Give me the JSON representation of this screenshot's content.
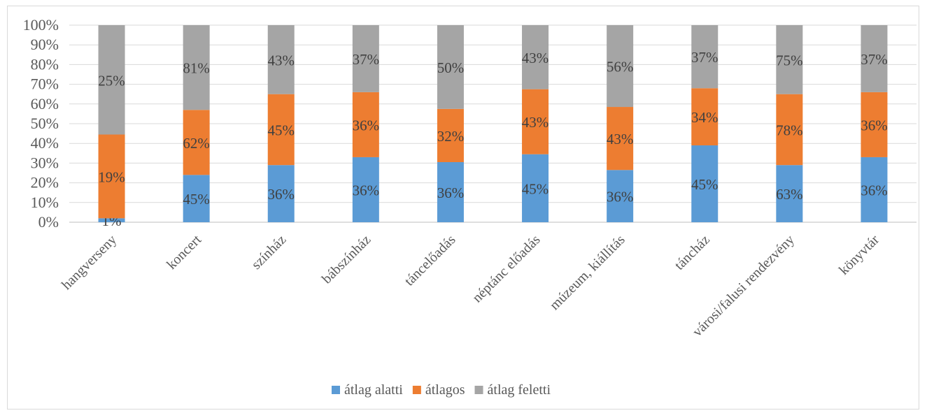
{
  "chart_data": {
    "type": "bar",
    "stacked": true,
    "percent_scale": true,
    "categories": [
      "hangverseny",
      "koncert",
      "színház",
      "bábszínház",
      "táncelőadás",
      "néptánc előadás",
      "múzeum, kiállítás",
      "táncház",
      "városi/falusi rendezvény",
      "könyvtár"
    ],
    "series": [
      {
        "name": "átlag alatti",
        "color": "#5b9bd5",
        "values": [
          2,
          24,
          29,
          33,
          30.5,
          34.5,
          26.5,
          39,
          29,
          33
        ],
        "labels": [
          "1%",
          "45%",
          "36%",
          "36%",
          "36%",
          "45%",
          "36%",
          "45%",
          "63%",
          "36%"
        ]
      },
      {
        "name": "átlagos",
        "color": "#ed7d31",
        "values": [
          42.5,
          33,
          36,
          33,
          27,
          33,
          32,
          29,
          36,
          33
        ],
        "labels": [
          "19%",
          "62%",
          "45%",
          "36%",
          "32%",
          "43%",
          "43%",
          "34%",
          "78%",
          "36%"
        ]
      },
      {
        "name": "átlag feletti",
        "color": "#a5a5a5",
        "values": [
          55.5,
          43,
          35,
          34,
          42.5,
          32.5,
          41.5,
          32,
          35,
          34
        ],
        "labels": [
          "25%",
          "81%",
          "43%",
          "37%",
          "50%",
          "43%",
          "56%",
          "37%",
          "75%",
          "37%"
        ]
      }
    ],
    "yticks": [
      "0%",
      "10%",
      "20%",
      "30%",
      "40%",
      "50%",
      "60%",
      "70%",
      "80%",
      "90%",
      "100%"
    ],
    "ylim": [
      0,
      100
    ],
    "grid": true,
    "legend": "bottom"
  }
}
